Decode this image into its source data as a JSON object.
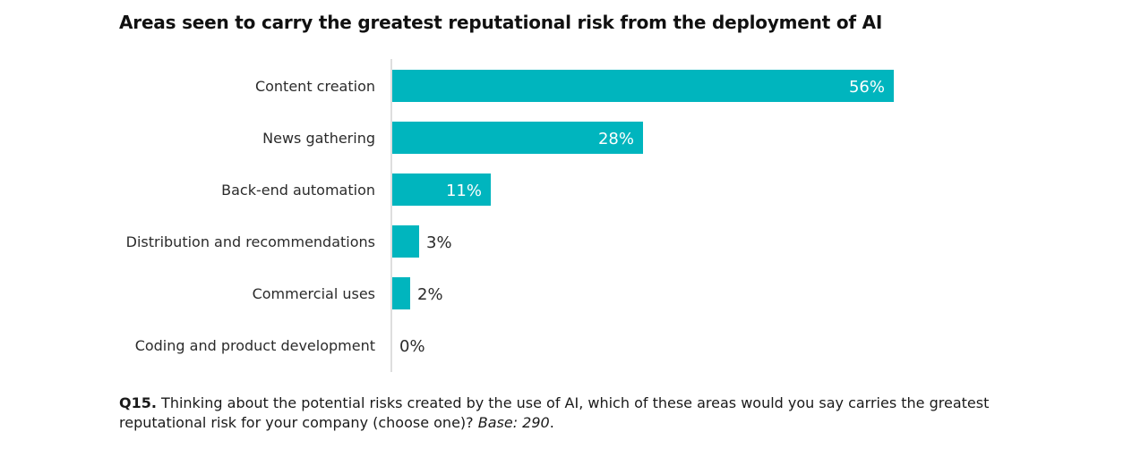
{
  "chart_data": {
    "type": "bar",
    "orientation": "horizontal",
    "title": "Areas seen to carry the greatest reputational risk from the deployment of AI",
    "categories": [
      "Content creation",
      "News gathering",
      "Back-end automation",
      "Distribution and recommendations",
      "Commercial uses",
      "Coding and product development"
    ],
    "values": [
      56,
      28,
      11,
      3,
      2,
      0
    ],
    "value_labels": [
      "56%",
      "28%",
      "11%",
      "3%",
      "2%",
      "0%"
    ],
    "xlim": [
      0,
      100
    ],
    "grid": false,
    "legend": "none",
    "bar_color": "#00B5BE"
  },
  "footnote": {
    "question_id": "Q15.",
    "question_text": " Thinking about the potential risks created by the use of AI, which of these areas would you say carries the greatest reputational risk for your company (choose one)? ",
    "base": "Base: 290",
    "end": "."
  }
}
